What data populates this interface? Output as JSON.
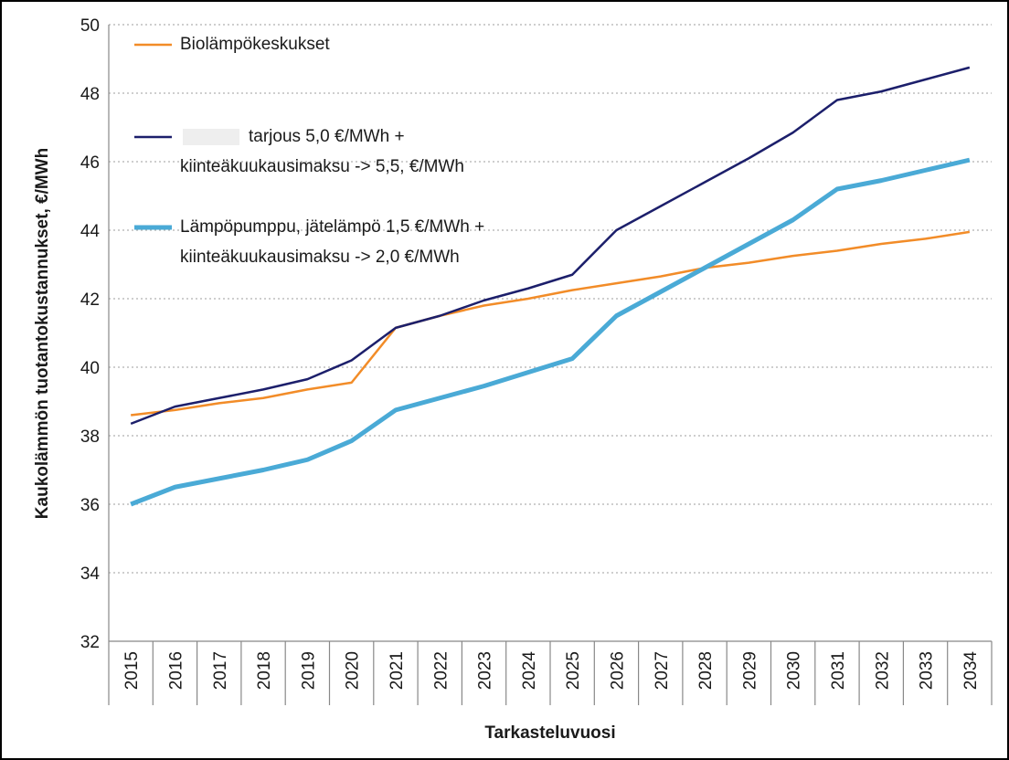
{
  "chart_data": {
    "type": "line",
    "x_label": "Tarkasteluvuosi",
    "y_label": "Kaukolämmön tuotantokustannukset, €/MWh",
    "categories": [
      "2015",
      "2016",
      "2017",
      "2018",
      "2019",
      "2020",
      "2021",
      "2022",
      "2023",
      "2024",
      "2025",
      "2026",
      "2027",
      "2028",
      "2029",
      "2030",
      "2031",
      "2032",
      "2033",
      "2034"
    ],
    "series": [
      {
        "name": [
          "Biolämpökeskukset"
        ],
        "color": "#f28c28",
        "width": 2.5,
        "values": [
          38.6,
          38.75,
          38.95,
          39.1,
          39.35,
          39.55,
          41.15,
          41.5,
          41.8,
          42.0,
          42.25,
          42.45,
          42.65,
          42.9,
          43.05,
          43.25,
          43.4,
          43.6,
          43.75,
          43.95
        ]
      },
      {
        "name": [
          "tarjous 5,0 €/MWh +",
          "kiinteäkuukausimaksu -> 5,5, €/MWh"
        ],
        "color": "#1c1f6b",
        "width": 2.5,
        "values": [
          38.35,
          38.85,
          39.1,
          39.35,
          39.65,
          40.2,
          41.15,
          41.5,
          41.95,
          42.3,
          42.7,
          44.0,
          44.7,
          45.4,
          46.1,
          46.85,
          47.8,
          48.05,
          48.4,
          48.75
        ]
      },
      {
        "name": [
          "Lämpöpumppu, jätelämpö 1,5 €/MWh +",
          "kiinteäkuukausimaksu -> 2,0 €/MWh"
        ],
        "color": "#4aaad6",
        "width": 5,
        "values": [
          36.0,
          36.5,
          36.75,
          37.0,
          37.3,
          37.85,
          38.75,
          39.1,
          39.45,
          39.85,
          40.25,
          41.5,
          42.2,
          42.9,
          43.6,
          44.3,
          45.2,
          45.45,
          45.75,
          46.05
        ]
      }
    ],
    "ylim": [
      32,
      50
    ],
    "yticks": [
      32,
      34,
      36,
      38,
      40,
      42,
      44,
      46,
      48,
      50
    ],
    "grid": true,
    "legend": "upper left"
  }
}
